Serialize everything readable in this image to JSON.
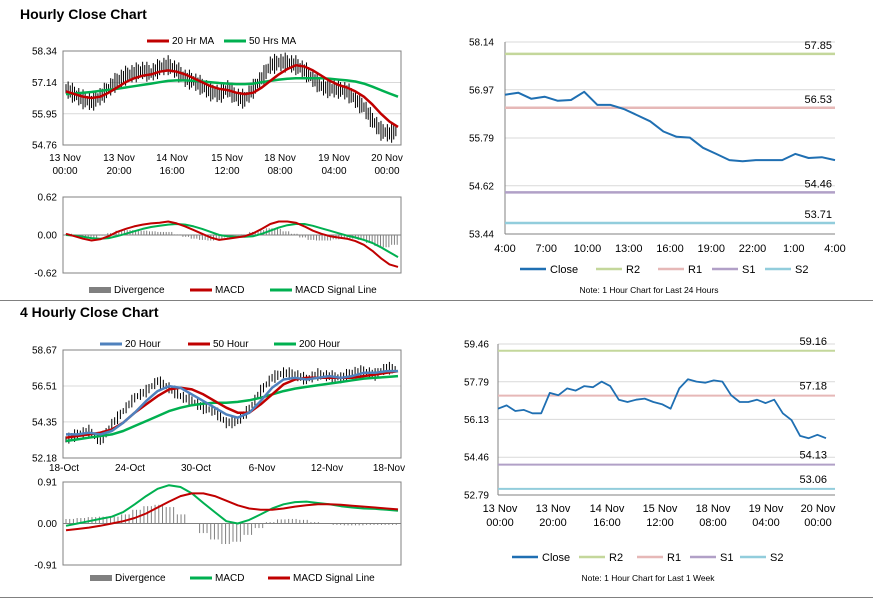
{
  "sections": {
    "hourly_title": "Hourly Close Chart",
    "four_hourly_title": "4 Hourly Close Chart"
  },
  "colors": {
    "ma_red": "#c00000",
    "ma_green": "#00b050",
    "ma_blue": "#4f81bd",
    "close_blue": "#1f6fb2",
    "r2": "#c4d79b",
    "r1": "#e6b8b7",
    "s1": "#b1a0c7",
    "s2": "#92cddc",
    "divergence": "#808080"
  },
  "chart_data": [
    {
      "id": "hourly_price",
      "type": "line",
      "title": "",
      "legend": [
        "20 Hr MA",
        "50 Hrs MA"
      ],
      "y_ticks": [
        "58.34",
        "57.14",
        "55.95",
        "54.76"
      ],
      "ylim": [
        54.76,
        58.34
      ],
      "x_ticks": [
        [
          "13 Nov",
          "00:00"
        ],
        [
          "13 Nov",
          "20:00"
        ],
        [
          "14 Nov",
          "16:00"
        ],
        [
          "15 Nov",
          "12:00"
        ],
        [
          "18 Nov",
          "08:00"
        ],
        [
          "19 Nov",
          "04:00"
        ],
        [
          "20 Nov",
          "00:00"
        ]
      ],
      "series": [
        {
          "name": "Close",
          "values": [
            56.9,
            56.7,
            56.5,
            56.4,
            56.6,
            56.9,
            57.2,
            57.4,
            57.5,
            57.6,
            57.5,
            57.7,
            57.8,
            57.6,
            57.3,
            57.2,
            57.0,
            56.8,
            56.7,
            56.9,
            56.6,
            56.5,
            56.9,
            57.3,
            57.8,
            57.9,
            57.9,
            57.8,
            57.6,
            57.3,
            57.0,
            56.9,
            56.9,
            56.8,
            56.5,
            56.2,
            55.7,
            55.3,
            55.2,
            55.3
          ]
        },
        {
          "name": "20 Hr MA",
          "values": [
            56.8,
            56.7,
            56.6,
            56.55,
            56.6,
            56.75,
            56.95,
            57.15,
            57.3,
            57.4,
            57.45,
            57.55,
            57.6,
            57.55,
            57.45,
            57.3,
            57.15,
            57.0,
            56.9,
            56.85,
            56.75,
            56.7,
            56.75,
            56.95,
            57.2,
            57.45,
            57.65,
            57.8,
            57.75,
            57.6,
            57.4,
            57.2,
            57.05,
            56.95,
            56.8,
            56.6,
            56.3,
            55.95,
            55.65,
            55.45
          ]
        },
        {
          "name": "50 Hrs MA",
          "values": [
            56.7,
            56.72,
            56.75,
            56.78,
            56.82,
            56.86,
            56.9,
            56.95,
            57.0,
            57.05,
            57.1,
            57.15,
            57.2,
            57.22,
            57.22,
            57.2,
            57.18,
            57.15,
            57.12,
            57.1,
            57.08,
            57.08,
            57.1,
            57.15,
            57.2,
            57.25,
            57.28,
            57.3,
            57.3,
            57.3,
            57.3,
            57.28,
            57.25,
            57.22,
            57.18,
            57.1,
            56.98,
            56.85,
            56.72,
            56.6
          ]
        }
      ]
    },
    {
      "id": "hourly_macd",
      "type": "line",
      "legend": [
        "Divergence",
        "MACD",
        "MACD Signal Line"
      ],
      "y_ticks": [
        "0.62",
        "0.00",
        "-0.62"
      ],
      "ylim": [
        -0.62,
        0.62
      ],
      "series": [
        {
          "name": "MACD",
          "values": [
            0.02,
            -0.02,
            -0.06,
            -0.09,
            -0.07,
            -0.02,
            0.05,
            0.1,
            0.14,
            0.17,
            0.19,
            0.2,
            0.22,
            0.19,
            0.14,
            0.08,
            0.02,
            -0.04,
            -0.08,
            -0.06,
            -0.04,
            -0.02,
            0.03,
            0.1,
            0.18,
            0.22,
            0.22,
            0.2,
            0.14,
            0.07,
            0.02,
            -0.02,
            -0.04,
            -0.06,
            -0.1,
            -0.16,
            -0.26,
            -0.38,
            -0.48,
            -0.52
          ]
        },
        {
          "name": "MACD Signal Line",
          "values": [
            0.0,
            -0.01,
            -0.03,
            -0.05,
            -0.06,
            -0.05,
            -0.02,
            0.02,
            0.06,
            0.1,
            0.13,
            0.15,
            0.17,
            0.18,
            0.17,
            0.14,
            0.1,
            0.05,
            0.0,
            -0.02,
            -0.03,
            -0.03,
            -0.02,
            0.02,
            0.07,
            0.12,
            0.16,
            0.18,
            0.18,
            0.15,
            0.11,
            0.07,
            0.03,
            -0.01,
            -0.04,
            -0.08,
            -0.13,
            -0.2,
            -0.28,
            -0.36
          ]
        },
        {
          "name": "Divergence",
          "values": [
            0.02,
            -0.01,
            -0.03,
            -0.04,
            -0.01,
            0.03,
            0.07,
            0.08,
            0.08,
            0.07,
            0.06,
            0.05,
            0.05,
            0.01,
            -0.03,
            -0.06,
            -0.08,
            -0.09,
            -0.08,
            -0.04,
            -0.01,
            0.01,
            0.05,
            0.08,
            0.11,
            0.1,
            0.06,
            0.02,
            -0.04,
            -0.08,
            -0.09,
            -0.09,
            -0.07,
            -0.05,
            -0.06,
            -0.08,
            -0.13,
            -0.18,
            -0.2,
            -0.16
          ]
        }
      ]
    },
    {
      "id": "hourly_levels",
      "type": "line",
      "y_ticks": [
        "58.14",
        "56.97",
        "55.79",
        "54.62",
        "53.44"
      ],
      "ylim": [
        53.44,
        58.14
      ],
      "x_ticks": [
        "4:00",
        "7:00",
        "10:00",
        "13:00",
        "16:00",
        "19:00",
        "22:00",
        "1:00",
        "4:00"
      ],
      "levels": [
        {
          "name": "R2",
          "value": 57.85,
          "label": "57.85"
        },
        {
          "name": "R1",
          "value": 56.53,
          "label": "56.53"
        },
        {
          "name": "S1",
          "value": 54.46,
          "label": "54.46"
        },
        {
          "name": "S2",
          "value": 53.71,
          "label": "53.71"
        }
      ],
      "series": [
        {
          "name": "Close",
          "values": [
            56.85,
            56.9,
            56.75,
            56.8,
            56.7,
            56.72,
            56.92,
            56.6,
            56.6,
            56.5,
            56.35,
            56.2,
            55.95,
            55.82,
            55.8,
            55.55,
            55.4,
            55.25,
            55.22,
            55.25,
            55.25,
            55.25,
            55.4,
            55.3,
            55.32,
            55.25
          ]
        }
      ],
      "legend": [
        "Close",
        "R2",
        "R1",
        "S1",
        "S2"
      ],
      "note": "Note: 1 Hour Chart for Last 24 Hours"
    },
    {
      "id": "four_hourly_price",
      "type": "line",
      "legend": [
        "20 Hour",
        "50 Hour",
        "200 Hour"
      ],
      "y_ticks": [
        "58.67",
        "56.51",
        "54.35",
        "52.18"
      ],
      "ylim": [
        52.18,
        58.67
      ],
      "x_ticks": [
        "18-Oct",
        "24-Oct",
        "30-Oct",
        "6-Nov",
        "12-Nov",
        "18-Nov"
      ],
      "series": [
        {
          "name": "Close",
          "values": [
            53.3,
            53.6,
            53.8,
            53.2,
            54.2,
            55.0,
            55.8,
            56.2,
            56.8,
            56.4,
            55.9,
            55.6,
            55.2,
            55.0,
            54.3,
            54.4,
            55.1,
            56.2,
            57.0,
            57.3,
            57.2,
            56.9,
            57.2,
            57.1,
            57.0,
            57.3,
            57.4,
            57.2,
            57.6,
            57.5
          ]
        },
        {
          "name": "20 Hour",
          "values": [
            53.6,
            53.6,
            53.7,
            53.6,
            53.8,
            54.3,
            54.9,
            55.6,
            56.2,
            56.5,
            56.4,
            56.0,
            55.6,
            55.2,
            54.8,
            54.6,
            54.9,
            55.6,
            56.4,
            56.9,
            57.0,
            56.9,
            57.0,
            57.1,
            57.0,
            57.1,
            57.3,
            57.3,
            57.4,
            57.4
          ]
        },
        {
          "name": "50 Hour",
          "values": [
            53.4,
            53.5,
            53.6,
            53.7,
            53.9,
            54.3,
            54.9,
            55.4,
            55.9,
            56.3,
            56.4,
            56.3,
            56.0,
            55.6,
            55.2,
            54.9,
            54.9,
            55.4,
            56.0,
            56.6,
            56.9,
            57.0,
            57.0,
            57.0,
            57.0,
            57.0,
            57.1,
            57.2,
            57.3,
            57.4
          ]
        },
        {
          "name": "200 Hour",
          "values": [
            53.2,
            53.3,
            53.4,
            53.5,
            53.6,
            53.8,
            54.1,
            54.4,
            54.7,
            55.0,
            55.2,
            55.35,
            55.45,
            55.5,
            55.5,
            55.55,
            55.65,
            55.8,
            56.0,
            56.2,
            56.35,
            56.45,
            56.55,
            56.65,
            56.75,
            56.85,
            56.95,
            57.0,
            57.05,
            57.1
          ]
        }
      ]
    },
    {
      "id": "four_hourly_macd",
      "type": "line",
      "legend": [
        "Divergence",
        "MACD",
        "MACD Signal Line"
      ],
      "y_ticks": [
        "0.91",
        "0.00",
        "-0.91"
      ],
      "ylim": [
        -0.91,
        0.91
      ],
      "series": [
        {
          "name": "MACD",
          "values": [
            -0.05,
            0.0,
            0.05,
            0.1,
            0.15,
            0.25,
            0.42,
            0.6,
            0.76,
            0.84,
            0.8,
            0.66,
            0.45,
            0.25,
            0.05,
            0.0,
            0.08,
            0.2,
            0.33,
            0.42,
            0.47,
            0.48,
            0.45,
            0.42,
            0.38,
            0.35,
            0.33,
            0.32,
            0.3,
            0.28
          ]
        },
        {
          "name": "MACD Signal Line",
          "values": [
            -0.15,
            -0.12,
            -0.09,
            -0.05,
            0.0,
            0.05,
            0.12,
            0.22,
            0.35,
            0.48,
            0.6,
            0.66,
            0.66,
            0.6,
            0.5,
            0.4,
            0.33,
            0.3,
            0.3,
            0.33,
            0.37,
            0.4,
            0.42,
            0.42,
            0.41,
            0.39,
            0.37,
            0.35,
            0.33,
            0.31
          ]
        },
        {
          "name": "Divergence",
          "values": [
            0.1,
            0.12,
            0.14,
            0.15,
            0.15,
            0.2,
            0.3,
            0.38,
            0.41,
            0.36,
            0.2,
            0.0,
            -0.21,
            -0.35,
            -0.45,
            -0.4,
            -0.25,
            -0.1,
            0.03,
            0.09,
            0.1,
            0.08,
            0.03,
            0.0,
            -0.03,
            -0.04,
            -0.04,
            -0.03,
            -0.03,
            -0.03
          ]
        }
      ]
    },
    {
      "id": "four_hourly_levels",
      "type": "line",
      "y_ticks": [
        "59.46",
        "57.79",
        "56.13",
        "54.46",
        "52.79"
      ],
      "ylim": [
        52.79,
        59.46
      ],
      "x_ticks": [
        [
          "13 Nov",
          "00:00"
        ],
        [
          "13 Nov",
          "20:00"
        ],
        [
          "14 Nov",
          "16:00"
        ],
        [
          "15 Nov",
          "12:00"
        ],
        [
          "18 Nov",
          "08:00"
        ],
        [
          "19 Nov",
          "04:00"
        ],
        [
          "20 Nov",
          "00:00"
        ]
      ],
      "levels": [
        {
          "name": "R2",
          "value": 59.16,
          "label": "59.16"
        },
        {
          "name": "R1",
          "value": 57.18,
          "label": "57.18"
        },
        {
          "name": "S1",
          "value": 54.13,
          "label": "54.13"
        },
        {
          "name": "S2",
          "value": 53.06,
          "label": "53.06"
        }
      ],
      "series": [
        {
          "name": "Close",
          "values": [
            56.6,
            56.75,
            56.5,
            56.55,
            56.4,
            56.4,
            57.3,
            57.2,
            57.5,
            57.4,
            57.6,
            57.55,
            57.8,
            57.6,
            57.0,
            56.9,
            57.0,
            57.05,
            56.9,
            56.8,
            56.6,
            57.5,
            57.9,
            57.8,
            57.75,
            57.85,
            57.8,
            57.2,
            56.9,
            56.9,
            57.0,
            56.85,
            57.0,
            56.4,
            56.1,
            55.4,
            55.3,
            55.45,
            55.3
          ]
        }
      ],
      "legend": [
        "Close",
        "R2",
        "R1",
        "S1",
        "S2"
      ],
      "note": "Note: 1 Hour Chart for Last 1 Week"
    }
  ]
}
